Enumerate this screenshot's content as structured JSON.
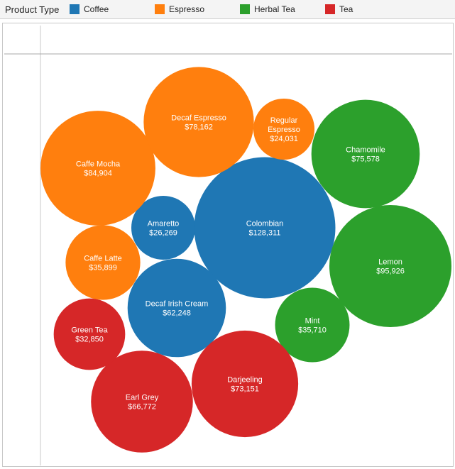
{
  "legend": {
    "title": "Product Type",
    "items": [
      {
        "label": "Coffee",
        "color": "#1f77b4"
      },
      {
        "label": "Espresso",
        "color": "#ff7f0e"
      },
      {
        "label": "Herbal Tea",
        "color": "#2ca02c"
      },
      {
        "label": "Tea",
        "color": "#d62728"
      }
    ]
  },
  "chart_data": {
    "type": "bubble",
    "size_field": "Sales",
    "color_field": "Product Type",
    "series": [
      {
        "name": "Coffee",
        "color": "#1f77b4",
        "items": [
          {
            "label": "Colombian",
            "value": 128311,
            "value_text": "$128,311"
          },
          {
            "label": "Decaf Irish Cream",
            "value": 62248,
            "value_text": "$62,248"
          },
          {
            "label": "Amaretto",
            "value": 26269,
            "value_text": "$26,269"
          }
        ]
      },
      {
        "name": "Espresso",
        "color": "#ff7f0e",
        "items": [
          {
            "label": "Caffe Mocha",
            "value": 84904,
            "value_text": "$84,904"
          },
          {
            "label": "Decaf Espresso",
            "value": 78162,
            "value_text": "$78,162"
          },
          {
            "label": "Caffe Latte",
            "value": 35899,
            "value_text": "$35,899"
          },
          {
            "label": "Regular Espresso",
            "value": 24031,
            "value_text": "$24,031"
          }
        ]
      },
      {
        "name": "Herbal Tea",
        "color": "#2ca02c",
        "items": [
          {
            "label": "Lemon",
            "value": 95926,
            "value_text": "$95,926"
          },
          {
            "label": "Chamomile",
            "value": 75578,
            "value_text": "$75,578"
          },
          {
            "label": "Mint",
            "value": 35710,
            "value_text": "$35,710"
          }
        ]
      },
      {
        "name": "Tea",
        "color": "#d62728",
        "items": [
          {
            "label": "Darjeeling",
            "value": 73151,
            "value_text": "$73,151"
          },
          {
            "label": "Earl Grey",
            "value": 66772,
            "value_text": "$66,772"
          },
          {
            "label": "Green Tea",
            "value": 32850,
            "value_text": "$32,850"
          }
        ]
      }
    ]
  }
}
